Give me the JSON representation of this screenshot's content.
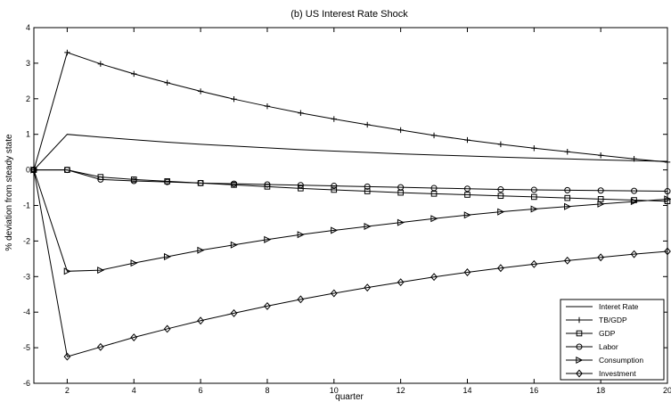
{
  "chart_data": {
    "type": "line",
    "title": "(b) US Interest Rate Shock",
    "xlabel": "quarter",
    "ylabel": "% deviation from steady state",
    "xlim": [
      1,
      20
    ],
    "ylim": [
      -6,
      4
    ],
    "xticks": [
      2,
      4,
      6,
      8,
      10,
      12,
      14,
      16,
      18,
      20
    ],
    "yticks": [
      -6,
      -5,
      -4,
      -3,
      -2,
      -1,
      0,
      1,
      2,
      3,
      4
    ],
    "grid": false,
    "legend_position": "bottom-right",
    "x": [
      1,
      2,
      3,
      4,
      5,
      6,
      7,
      8,
      9,
      10,
      11,
      12,
      13,
      14,
      15,
      16,
      17,
      18,
      19,
      20
    ],
    "series": [
      {
        "name": "Interet Rate",
        "marker": "none",
        "values": [
          0,
          1.0,
          0.92,
          0.85,
          0.78,
          0.72,
          0.67,
          0.62,
          0.57,
          0.53,
          0.49,
          0.45,
          0.42,
          0.39,
          0.36,
          0.33,
          0.31,
          0.28,
          0.26,
          0.24
        ]
      },
      {
        "name": "TB/GDP",
        "marker": "plus",
        "values": [
          0,
          3.3,
          2.98,
          2.7,
          2.45,
          2.21,
          1.99,
          1.79,
          1.6,
          1.43,
          1.27,
          1.12,
          0.97,
          0.84,
          0.72,
          0.61,
          0.51,
          0.41,
          0.31,
          0.22
        ]
      },
      {
        "name": "GDP",
        "marker": "square",
        "values": [
          0,
          0.0,
          -0.2,
          -0.27,
          -0.32,
          -0.37,
          -0.42,
          -0.47,
          -0.52,
          -0.56,
          -0.6,
          -0.64,
          -0.67,
          -0.7,
          -0.73,
          -0.76,
          -0.79,
          -0.82,
          -0.85,
          -0.88
        ]
      },
      {
        "name": "Labor",
        "marker": "circle",
        "values": [
          0,
          0.0,
          -0.27,
          -0.31,
          -0.34,
          -0.37,
          -0.39,
          -0.41,
          -0.43,
          -0.45,
          -0.47,
          -0.49,
          -0.51,
          -0.53,
          -0.55,
          -0.56,
          -0.57,
          -0.58,
          -0.59,
          -0.6
        ]
      },
      {
        "name": "Consumption",
        "marker": "triangle-right",
        "values": [
          0,
          -2.85,
          -2.82,
          -2.62,
          -2.44,
          -2.26,
          -2.11,
          -1.96,
          -1.82,
          -1.7,
          -1.59,
          -1.48,
          -1.37,
          -1.27,
          -1.18,
          -1.1,
          -1.03,
          -0.96,
          -0.89,
          -0.82
        ]
      },
      {
        "name": "Investment",
        "marker": "diamond",
        "values": [
          0,
          -5.25,
          -4.98,
          -4.71,
          -4.47,
          -4.24,
          -4.03,
          -3.83,
          -3.64,
          -3.47,
          -3.31,
          -3.16,
          -3.01,
          -2.88,
          -2.76,
          -2.65,
          -2.55,
          -2.46,
          -2.37,
          -2.29
        ]
      }
    ]
  }
}
